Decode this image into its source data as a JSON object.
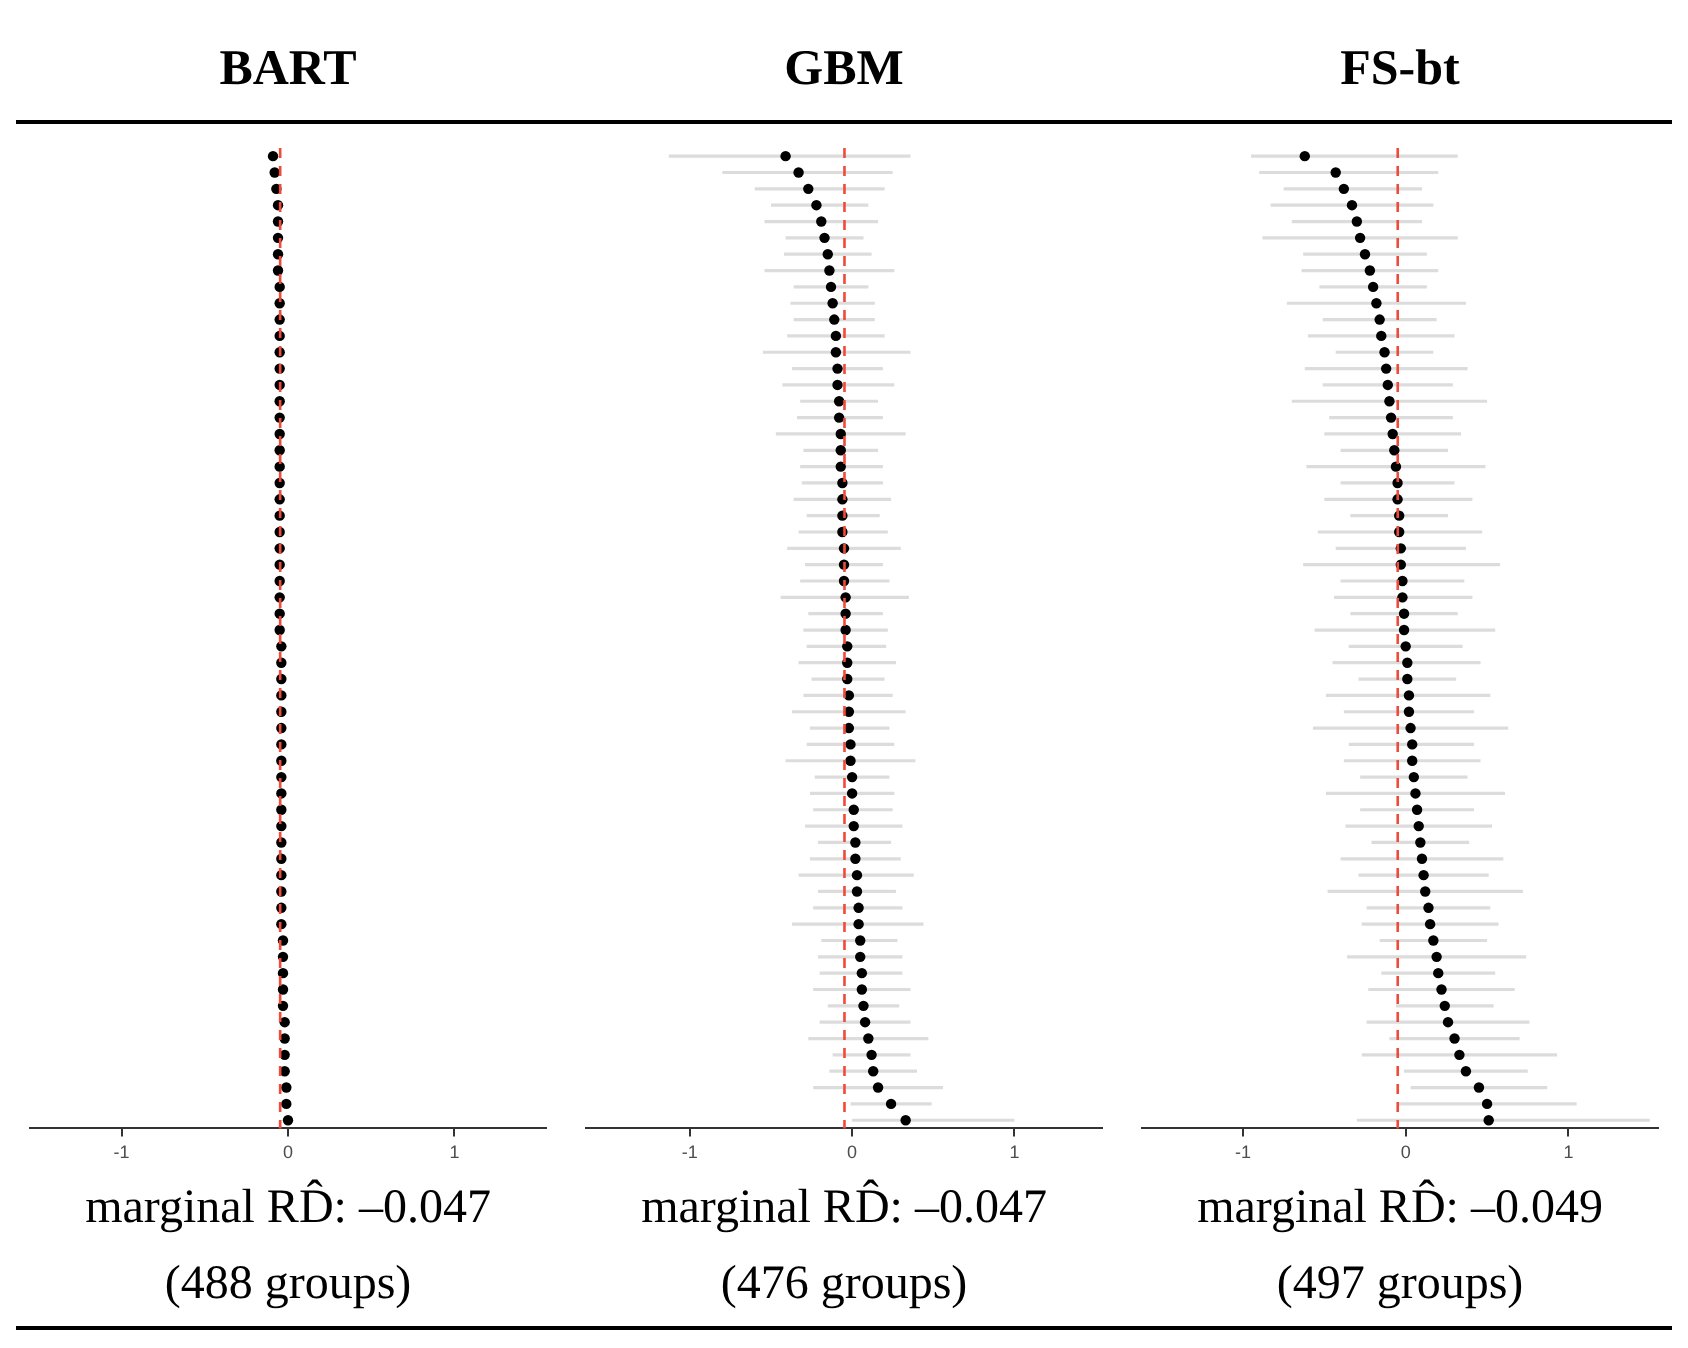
{
  "chart_data": [
    {
      "type": "scatter",
      "title": "BART",
      "orientation": "horizontal",
      "color": "#000000",
      "marker": "circle",
      "grid": false,
      "tick_labels": "x",
      "categories": [
        null,
        null,
        null,
        null,
        null,
        null,
        null,
        null,
        null,
        null,
        null,
        null,
        null,
        null,
        null,
        null,
        null,
        null,
        null,
        null,
        null,
        null,
        null,
        null,
        null,
        null,
        null,
        null,
        null,
        null,
        null,
        null,
        null,
        null,
        null,
        null,
        null,
        null,
        null,
        null,
        null,
        null,
        null,
        null,
        null,
        null,
        null,
        null,
        null,
        null,
        null,
        null,
        null,
        null,
        null,
        null,
        null,
        null,
        null,
        null
      ],
      "values": [
        -0.09,
        -0.08,
        -0.07,
        -0.06,
        -0.06,
        -0.06,
        -0.06,
        -0.06,
        -0.05,
        -0.05,
        -0.05,
        -0.05,
        -0.05,
        -0.05,
        -0.05,
        -0.05,
        -0.05,
        -0.05,
        -0.05,
        -0.05,
        -0.05,
        -0.05,
        -0.05,
        -0.05,
        -0.05,
        -0.05,
        -0.05,
        -0.05,
        -0.05,
        -0.05,
        -0.04,
        -0.04,
        -0.04,
        -0.04,
        -0.04,
        -0.04,
        -0.04,
        -0.04,
        -0.04,
        -0.04,
        -0.04,
        -0.04,
        -0.04,
        -0.04,
        -0.04,
        -0.04,
        -0.04,
        -0.04,
        -0.03,
        -0.03,
        -0.03,
        -0.03,
        -0.03,
        -0.02,
        -0.02,
        -0.02,
        -0.02,
        -0.01,
        -0.01,
        0.0
      ],
      "xlim": [
        -1.55,
        1.55
      ],
      "xticks": [
        -1,
        0,
        1
      ],
      "ref_lines": [
        {
          "axis": "x",
          "value": -0.047,
          "color": "#f04a3a",
          "line_style": "dashed"
        }
      ],
      "annotations": [
        "marginal RD̂: –0.047",
        "(488 groups)"
      ]
    },
    {
      "type": "scatter",
      "title": "GBM",
      "orientation": "horizontal",
      "color": "#000000",
      "marker": "circle",
      "grid": false,
      "tick_labels": "x",
      "categories": [
        null,
        null,
        null,
        null,
        null,
        null,
        null,
        null,
        null,
        null,
        null,
        null,
        null,
        null,
        null,
        null,
        null,
        null,
        null,
        null,
        null,
        null,
        null,
        null,
        null,
        null,
        null,
        null,
        null,
        null,
        null,
        null,
        null,
        null,
        null,
        null,
        null,
        null,
        null,
        null,
        null,
        null,
        null,
        null,
        null,
        null,
        null,
        null,
        null,
        null,
        null,
        null,
        null,
        null,
        null,
        null,
        null,
        null,
        null,
        null
      ],
      "values": [
        -0.41,
        -0.33,
        -0.27,
        -0.22,
        -0.19,
        -0.17,
        -0.15,
        -0.14,
        -0.13,
        -0.12,
        -0.11,
        -0.1,
        -0.1,
        -0.09,
        -0.09,
        -0.08,
        -0.08,
        -0.07,
        -0.07,
        -0.07,
        -0.06,
        -0.06,
        -0.06,
        -0.06,
        -0.05,
        -0.05,
        -0.05,
        -0.04,
        -0.04,
        -0.04,
        -0.03,
        -0.03,
        -0.03,
        -0.02,
        -0.02,
        -0.02,
        -0.01,
        -0.01,
        0.0,
        0.0,
        0.01,
        0.01,
        0.02,
        0.02,
        0.03,
        0.03,
        0.04,
        0.04,
        0.05,
        0.05,
        0.06,
        0.06,
        0.07,
        0.08,
        0.1,
        0.12,
        0.13,
        0.16,
        0.24,
        0.33
      ],
      "errors": [
        [
          -1.13,
          0.36
        ],
        [
          -0.8,
          0.25
        ],
        [
          -0.6,
          0.2
        ],
        [
          -0.5,
          0.1
        ],
        [
          -0.54,
          0.16
        ],
        [
          -0.41,
          0.07
        ],
        [
          -0.42,
          0.12
        ],
        [
          -0.54,
          0.26
        ],
        [
          -0.36,
          0.1
        ],
        [
          -0.38,
          0.14
        ],
        [
          -0.36,
          0.14
        ],
        [
          -0.4,
          0.2
        ],
        [
          -0.55,
          0.36
        ],
        [
          -0.37,
          0.19
        ],
        [
          -0.43,
          0.26
        ],
        [
          -0.32,
          0.16
        ],
        [
          -0.34,
          0.19
        ],
        [
          -0.47,
          0.33
        ],
        [
          -0.3,
          0.16
        ],
        [
          -0.32,
          0.19
        ],
        [
          -0.31,
          0.19
        ],
        [
          -0.36,
          0.24
        ],
        [
          -0.28,
          0.17
        ],
        [
          -0.33,
          0.22
        ],
        [
          -0.4,
          0.3
        ],
        [
          -0.29,
          0.19
        ],
        [
          -0.32,
          0.23
        ],
        [
          -0.44,
          0.35
        ],
        [
          -0.27,
          0.19
        ],
        [
          -0.3,
          0.22
        ],
        [
          -0.28,
          0.21
        ],
        [
          -0.33,
          0.27
        ],
        [
          -0.25,
          0.2
        ],
        [
          -0.3,
          0.25
        ],
        [
          -0.37,
          0.33
        ],
        [
          -0.26,
          0.23
        ],
        [
          -0.28,
          0.26
        ],
        [
          -0.41,
          0.39
        ],
        [
          -0.23,
          0.23
        ],
        [
          -0.26,
          0.26
        ],
        [
          -0.24,
          0.25
        ],
        [
          -0.29,
          0.31
        ],
        [
          -0.21,
          0.24
        ],
        [
          -0.26,
          0.3
        ],
        [
          -0.33,
          0.38
        ],
        [
          -0.21,
          0.27
        ],
        [
          -0.24,
          0.31
        ],
        [
          -0.37,
          0.44
        ],
        [
          -0.19,
          0.28
        ],
        [
          -0.21,
          0.31
        ],
        [
          -0.2,
          0.31
        ],
        [
          -0.24,
          0.36
        ],
        [
          -0.15,
          0.29
        ],
        [
          -0.2,
          0.36
        ],
        [
          -0.27,
          0.47
        ],
        [
          -0.12,
          0.36
        ],
        [
          -0.14,
          0.4
        ],
        [
          -0.24,
          0.56
        ],
        [
          -0.01,
          0.49
        ],
        [
          0.0,
          1.0
        ]
      ],
      "xlim": [
        -1.64,
        1.54
      ],
      "xticks": [
        -1,
        0,
        1
      ],
      "ref_lines": [
        {
          "axis": "x",
          "value": -0.047,
          "color": "#f04a3a",
          "line_style": "dashed"
        }
      ],
      "annotations": [
        "marginal RD̂: –0.047",
        "(476 groups)"
      ]
    },
    {
      "type": "scatter",
      "title": "FS-bt",
      "orientation": "horizontal",
      "color": "#000000",
      "marker": "circle",
      "grid": false,
      "tick_labels": "x",
      "categories": [
        null,
        null,
        null,
        null,
        null,
        null,
        null,
        null,
        null,
        null,
        null,
        null,
        null,
        null,
        null,
        null,
        null,
        null,
        null,
        null,
        null,
        null,
        null,
        null,
        null,
        null,
        null,
        null,
        null,
        null,
        null,
        null,
        null,
        null,
        null,
        null,
        null,
        null,
        null,
        null,
        null,
        null,
        null,
        null,
        null,
        null,
        null,
        null,
        null,
        null,
        null,
        null,
        null,
        null,
        null,
        null,
        null,
        null,
        null,
        null
      ],
      "values": [
        -0.62,
        -0.43,
        -0.38,
        -0.33,
        -0.3,
        -0.28,
        -0.25,
        -0.22,
        -0.2,
        -0.18,
        -0.16,
        -0.15,
        -0.13,
        -0.12,
        -0.11,
        -0.1,
        -0.09,
        -0.08,
        -0.07,
        -0.06,
        -0.05,
        -0.05,
        -0.04,
        -0.04,
        -0.03,
        -0.03,
        -0.02,
        -0.02,
        -0.01,
        -0.01,
        0.0,
        0.01,
        0.01,
        0.02,
        0.02,
        0.03,
        0.04,
        0.04,
        0.05,
        0.06,
        0.07,
        0.08,
        0.09,
        0.1,
        0.11,
        0.12,
        0.14,
        0.15,
        0.17,
        0.19,
        0.2,
        0.22,
        0.24,
        0.26,
        0.3,
        0.33,
        0.37,
        0.45,
        0.5,
        0.51
      ],
      "errors": [
        [
          -0.95,
          0.32
        ],
        [
          -0.9,
          0.2
        ],
        [
          -0.75,
          0.1
        ],
        [
          -0.83,
          0.17
        ],
        [
          -0.7,
          0.1
        ],
        [
          -0.88,
          0.32
        ],
        [
          -0.63,
          0.13
        ],
        [
          -0.64,
          0.2
        ],
        [
          -0.53,
          0.13
        ],
        [
          -0.73,
          0.37
        ],
        [
          -0.51,
          0.19
        ],
        [
          -0.6,
          0.3
        ],
        [
          -0.43,
          0.17
        ],
        [
          -0.62,
          0.38
        ],
        [
          -0.51,
          0.29
        ],
        [
          -0.7,
          0.5
        ],
        [
          -0.47,
          0.29
        ],
        [
          -0.5,
          0.34
        ],
        [
          -0.4,
          0.26
        ],
        [
          -0.61,
          0.49
        ],
        [
          -0.4,
          0.3
        ],
        [
          -0.5,
          0.41
        ],
        [
          -0.34,
          0.26
        ],
        [
          -0.54,
          0.47
        ],
        [
          -0.43,
          0.37
        ],
        [
          -0.63,
          0.58
        ],
        [
          -0.4,
          0.36
        ],
        [
          -0.44,
          0.41
        ],
        [
          -0.34,
          0.32
        ],
        [
          -0.56,
          0.55
        ],
        [
          -0.35,
          0.35
        ],
        [
          -0.45,
          0.46
        ],
        [
          -0.29,
          0.31
        ],
        [
          -0.49,
          0.52
        ],
        [
          -0.38,
          0.42
        ],
        [
          -0.57,
          0.63
        ],
        [
          -0.35,
          0.42
        ],
        [
          -0.38,
          0.46
        ],
        [
          -0.28,
          0.38
        ],
        [
          -0.49,
          0.61
        ],
        [
          -0.28,
          0.42
        ],
        [
          -0.37,
          0.53
        ],
        [
          -0.21,
          0.39
        ],
        [
          -0.4,
          0.6
        ],
        [
          -0.29,
          0.51
        ],
        [
          -0.48,
          0.72
        ],
        [
          -0.24,
          0.52
        ],
        [
          -0.27,
          0.57
        ],
        [
          -0.16,
          0.5
        ],
        [
          -0.36,
          0.74
        ],
        [
          -0.15,
          0.55
        ],
        [
          -0.23,
          0.67
        ],
        [
          -0.06,
          0.54
        ],
        [
          -0.24,
          0.76
        ],
        [
          -0.1,
          0.7
        ],
        [
          -0.27,
          0.93
        ],
        [
          -0.01,
          0.75
        ],
        [
          0.03,
          0.87
        ],
        [
          -0.05,
          1.05
        ],
        [
          -0.3,
          1.5
        ]
      ],
      "xlim": [
        -1.62,
        1.55
      ],
      "xticks": [
        -1,
        0,
        1
      ],
      "ref_lines": [
        {
          "axis": "x",
          "value": -0.049,
          "color": "#f04a3a",
          "line_style": "dashed"
        }
      ],
      "annotations": [
        "marginal RD̂: –0.049",
        "(497 groups)"
      ]
    }
  ]
}
